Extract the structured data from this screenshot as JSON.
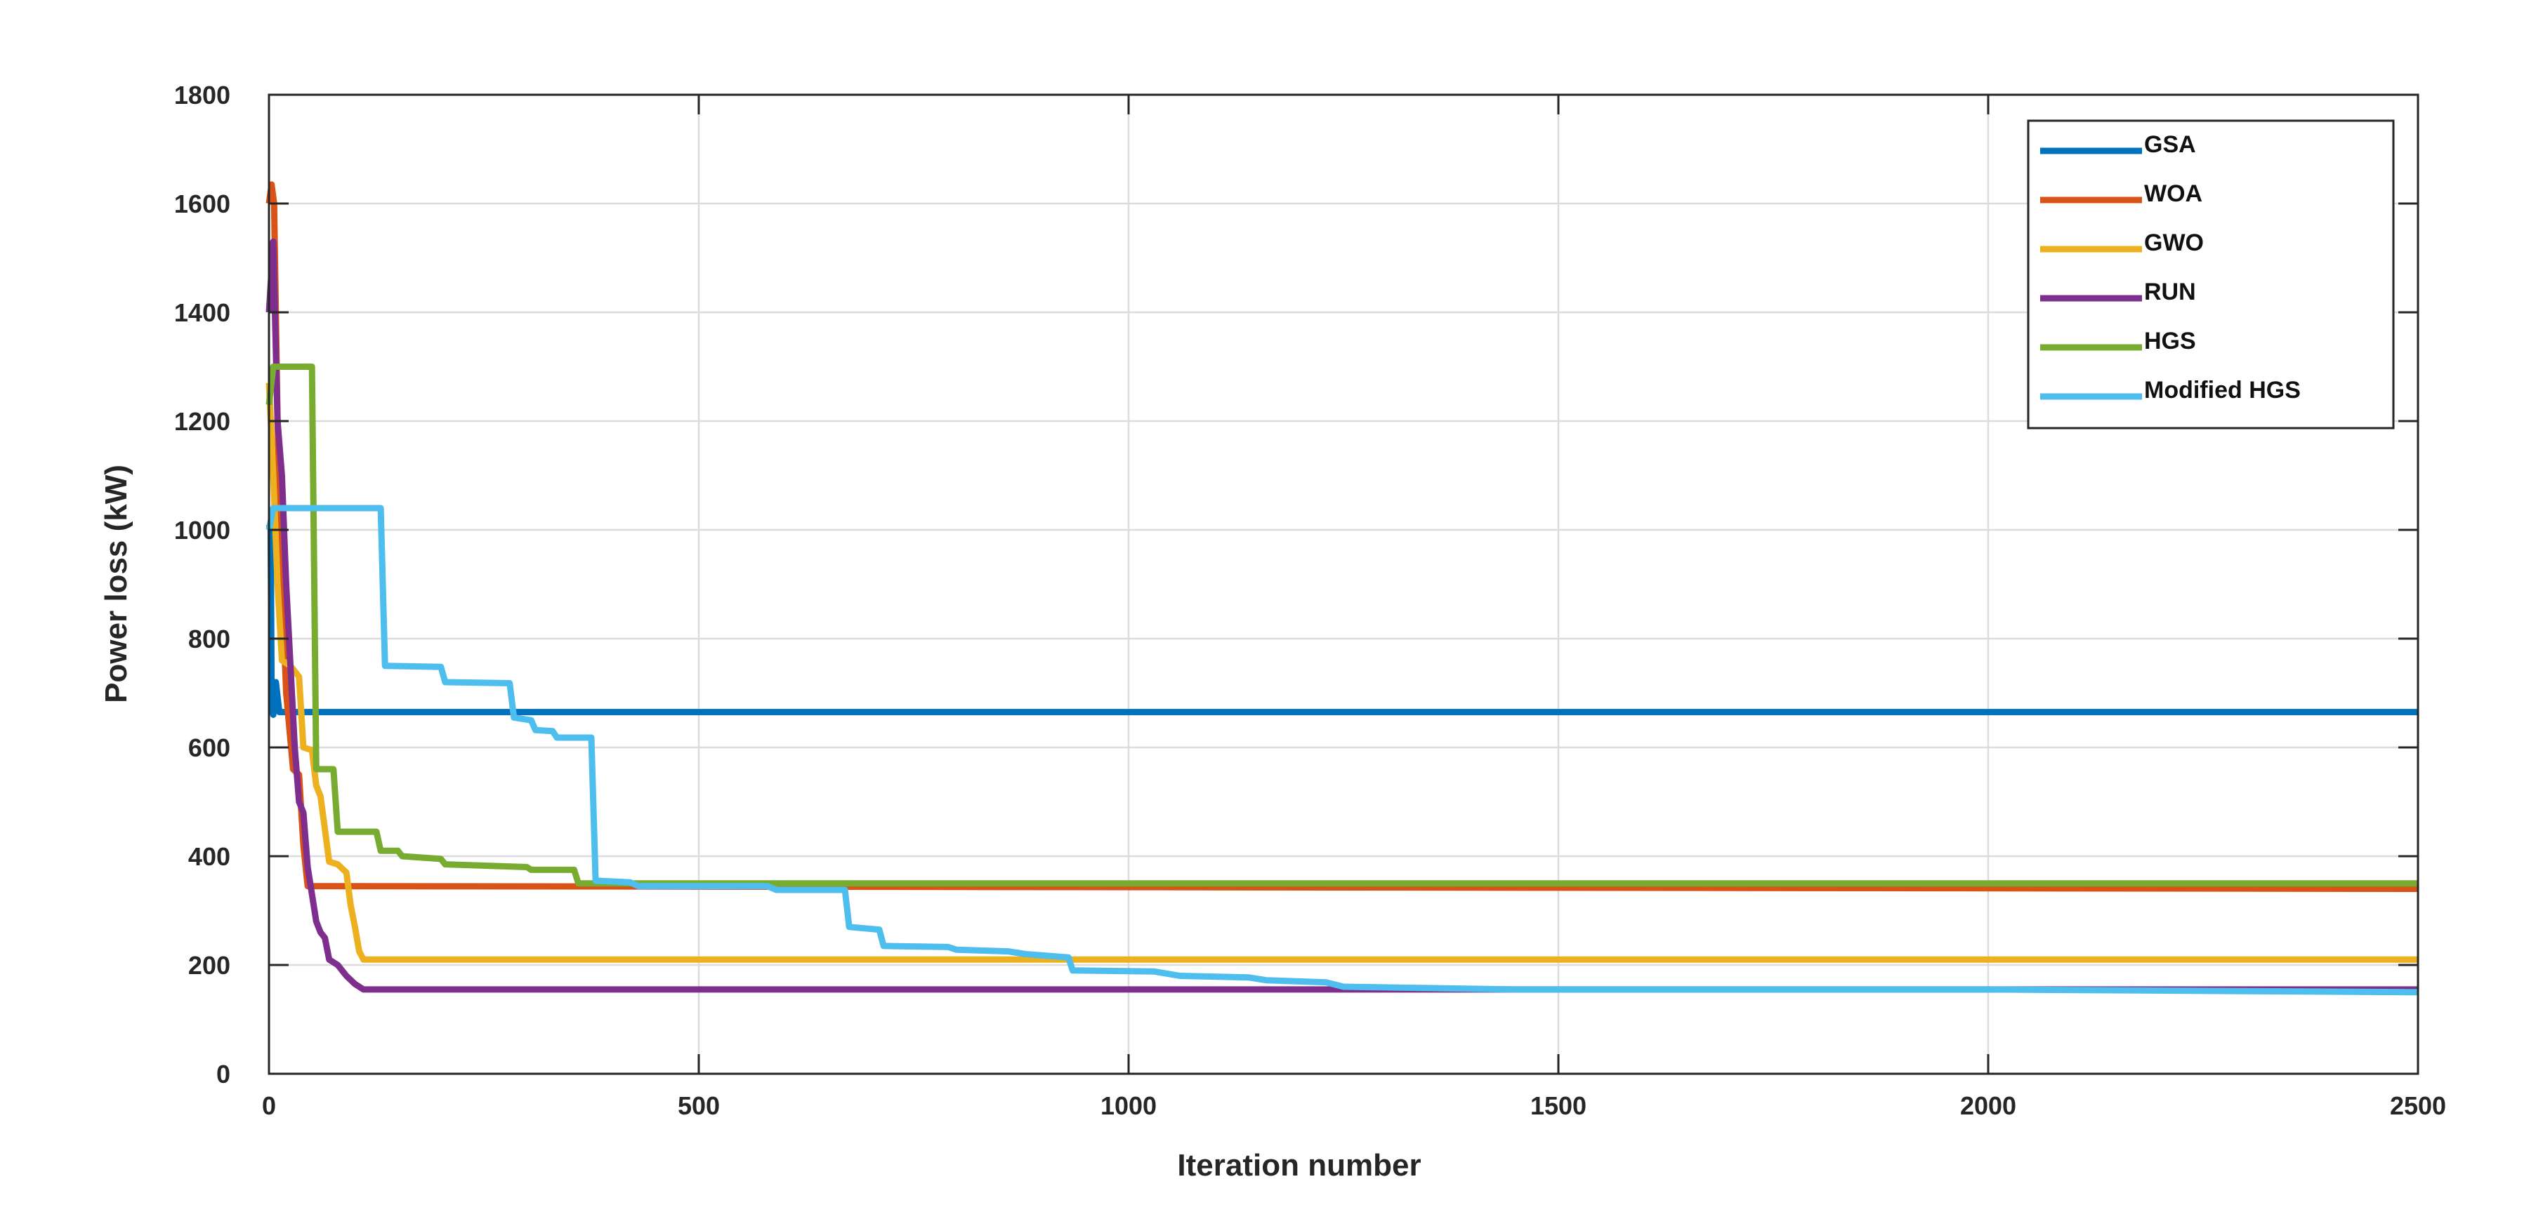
{
  "chart_data": {
    "type": "line",
    "title": "",
    "xlabel": "Iteration number",
    "ylabel": "Power loss (kW)",
    "xlim": [
      0,
      2500
    ],
    "ylim": [
      0,
      1800
    ],
    "xticks": [
      0,
      500,
      1000,
      1500,
      2000,
      2500
    ],
    "yticks": [
      0,
      200,
      400,
      600,
      800,
      1000,
      1200,
      1400,
      1600,
      1800
    ],
    "grid": true,
    "legend_position": "top-right",
    "series": [
      {
        "name": "GSA",
        "color": "#0072BD",
        "points": [
          [
            0,
            1010
          ],
          [
            2,
            1000
          ],
          [
            3,
            700
          ],
          [
            5,
            660
          ],
          [
            8,
            720
          ],
          [
            12,
            665
          ],
          [
            2500,
            665
          ]
        ]
      },
      {
        "name": "WOA",
        "color": "#D95319",
        "points": [
          [
            0,
            1600
          ],
          [
            3,
            1635
          ],
          [
            6,
            1600
          ],
          [
            10,
            1200
          ],
          [
            15,
            900
          ],
          [
            20,
            700
          ],
          [
            28,
            560
          ],
          [
            35,
            550
          ],
          [
            40,
            420
          ],
          [
            45,
            345
          ],
          [
            2500,
            340
          ]
        ]
      },
      {
        "name": "GWO",
        "color": "#EDB120",
        "points": [
          [
            0,
            1270
          ],
          [
            5,
            1100
          ],
          [
            10,
            900
          ],
          [
            15,
            760
          ],
          [
            25,
            750
          ],
          [
            35,
            730
          ],
          [
            40,
            600
          ],
          [
            50,
            595
          ],
          [
            55,
            530
          ],
          [
            60,
            510
          ],
          [
            65,
            450
          ],
          [
            70,
            390
          ],
          [
            80,
            385
          ],
          [
            90,
            370
          ],
          [
            95,
            310
          ],
          [
            100,
            270
          ],
          [
            105,
            225
          ],
          [
            110,
            210
          ],
          [
            2500,
            210
          ]
        ]
      },
      {
        "name": "RUN",
        "color": "#7E2F8E",
        "points": [
          [
            0,
            1400
          ],
          [
            5,
            1530
          ],
          [
            10,
            1200
          ],
          [
            15,
            1100
          ],
          [
            20,
            900
          ],
          [
            25,
            750
          ],
          [
            30,
            600
          ],
          [
            35,
            500
          ],
          [
            40,
            480
          ],
          [
            45,
            380
          ],
          [
            50,
            330
          ],
          [
            55,
            280
          ],
          [
            60,
            260
          ],
          [
            65,
            250
          ],
          [
            70,
            210
          ],
          [
            80,
            200
          ],
          [
            90,
            180
          ],
          [
            100,
            165
          ],
          [
            110,
            155
          ],
          [
            2500,
            155
          ]
        ]
      },
      {
        "name": "HGS",
        "color": "#77AC30",
        "points": [
          [
            0,
            1230
          ],
          [
            5,
            1300
          ],
          [
            50,
            1300
          ],
          [
            55,
            560
          ],
          [
            75,
            560
          ],
          [
            80,
            445
          ],
          [
            125,
            445
          ],
          [
            130,
            410
          ],
          [
            150,
            410
          ],
          [
            155,
            400
          ],
          [
            200,
            395
          ],
          [
            205,
            385
          ],
          [
            300,
            380
          ],
          [
            305,
            375
          ],
          [
            355,
            375
          ],
          [
            360,
            350
          ],
          [
            2500,
            350
          ]
        ]
      },
      {
        "name": "Modified HGS",
        "color": "#4DBEEE",
        "points": [
          [
            0,
            1000
          ],
          [
            5,
            1040
          ],
          [
            130,
            1040
          ],
          [
            135,
            750
          ],
          [
            200,
            748
          ],
          [
            205,
            720
          ],
          [
            280,
            718
          ],
          [
            285,
            655
          ],
          [
            305,
            650
          ],
          [
            310,
            632
          ],
          [
            330,
            630
          ],
          [
            335,
            618
          ],
          [
            375,
            618
          ],
          [
            380,
            355
          ],
          [
            420,
            352
          ],
          [
            430,
            345
          ],
          [
            580,
            345
          ],
          [
            590,
            338
          ],
          [
            670,
            338
          ],
          [
            675,
            270
          ],
          [
            710,
            265
          ],
          [
            715,
            235
          ],
          [
            790,
            233
          ],
          [
            800,
            228
          ],
          [
            860,
            225
          ],
          [
            880,
            220
          ],
          [
            930,
            214
          ],
          [
            935,
            190
          ],
          [
            1030,
            188
          ],
          [
            1060,
            180
          ],
          [
            1140,
            177
          ],
          [
            1160,
            172
          ],
          [
            1230,
            168
          ],
          [
            1250,
            160
          ],
          [
            1450,
            155
          ],
          [
            2000,
            155
          ],
          [
            2500,
            150
          ]
        ]
      }
    ]
  }
}
